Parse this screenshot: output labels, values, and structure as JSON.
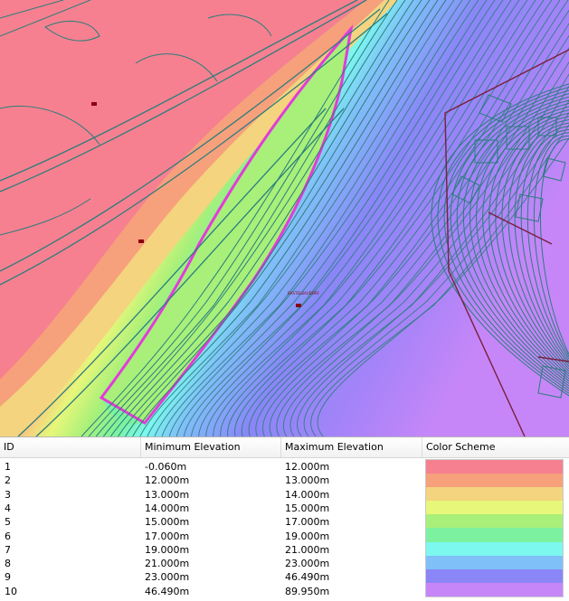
{
  "map": {
    "building_label": "BASTELBAUDORF",
    "colors": {
      "contour": "#2a7d7d",
      "boundary": "#e23cd8",
      "road": "#7a1f3d",
      "marker": "#8a0010"
    }
  },
  "legend": {
    "headers": {
      "id": "ID",
      "min": "Minimum Elevation",
      "max": "Maximum Elevation",
      "scheme": "Color Scheme"
    },
    "rows": [
      {
        "id": "1",
        "min": "-0.060m",
        "max": "12.000m",
        "color": "#f6808f"
      },
      {
        "id": "2",
        "min": "12.000m",
        "max": "13.000m",
        "color": "#f7a07c"
      },
      {
        "id": "3",
        "min": "13.000m",
        "max": "14.000m",
        "color": "#f4d47e"
      },
      {
        "id": "4",
        "min": "14.000m",
        "max": "15.000m",
        "color": "#e6f77a"
      },
      {
        "id": "5",
        "min": "15.000m",
        "max": "17.000m",
        "color": "#a8f07a"
      },
      {
        "id": "6",
        "min": "17.000m",
        "max": "19.000m",
        "color": "#7cf2a0"
      },
      {
        "id": "7",
        "min": "19.000m",
        "max": "21.000m",
        "color": "#7cf8ee"
      },
      {
        "id": "8",
        "min": "21.000m",
        "max": "23.000m",
        "color": "#80c0f8"
      },
      {
        "id": "9",
        "min": "23.000m",
        "max": "46.490m",
        "color": "#8a86f7"
      },
      {
        "id": "10",
        "min": "46.490m",
        "max": "89.950m",
        "color": "#c686f8"
      }
    ]
  }
}
